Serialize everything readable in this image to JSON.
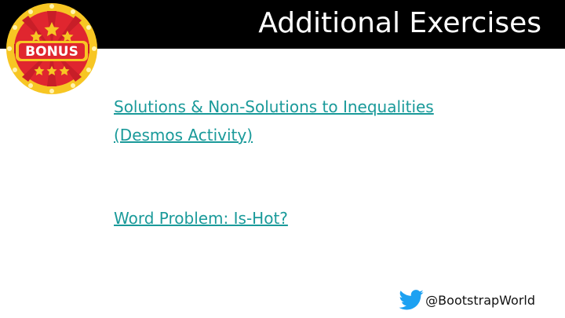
{
  "header": {
    "title": "Additional Exercises"
  },
  "badge": {
    "label": "BONUS",
    "icon": "bonus-badge-icon"
  },
  "links": [
    {
      "line1": "Solutions & Non-Solutions to Inequalities",
      "line2": "(Desmos Activity)"
    },
    {
      "line1": "Word Problem: Is-Hot?"
    }
  ],
  "footer": {
    "handle": "@BootstrapWorld",
    "icon": "twitter-bird-icon"
  },
  "colors": {
    "header_bg": "#000000",
    "link": "#1a9a9a",
    "twitter": "#1da1f2",
    "badge_red": "#e0262f",
    "badge_gold": "#f7c623"
  }
}
